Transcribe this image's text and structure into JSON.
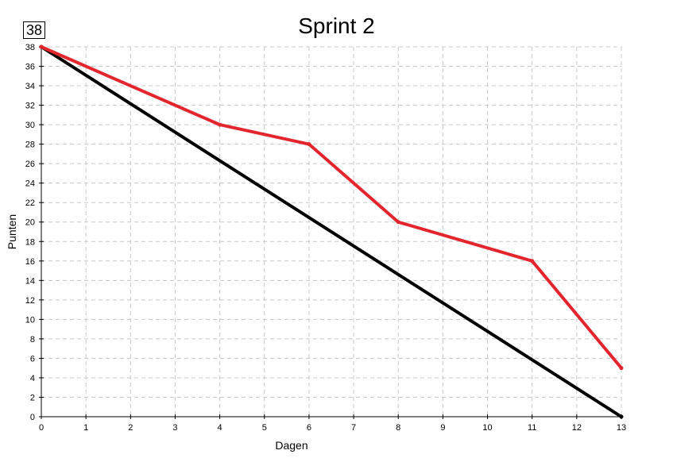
{
  "badge": "38",
  "chart_data": {
    "type": "line",
    "title": "Sprint 2",
    "xlabel": "Dagen",
    "ylabel": "Punten",
    "xlim": [
      0,
      13
    ],
    "ylim": [
      0,
      38
    ],
    "x_ticks": [
      0,
      1,
      2,
      3,
      4,
      5,
      6,
      7,
      8,
      9,
      10,
      11,
      12,
      13
    ],
    "y_ticks": [
      0,
      2,
      4,
      6,
      8,
      10,
      12,
      14,
      16,
      18,
      20,
      22,
      24,
      26,
      28,
      30,
      32,
      34,
      36,
      38
    ],
    "grid": true,
    "series": [
      {
        "color": "#000000",
        "x": [
          0,
          13
        ],
        "y": [
          38,
          0
        ]
      },
      {
        "color": "#e3262e",
        "x": [
          0,
          4,
          6,
          8,
          11,
          13
        ],
        "y": [
          38,
          30,
          28,
          20,
          16,
          5
        ]
      }
    ]
  }
}
